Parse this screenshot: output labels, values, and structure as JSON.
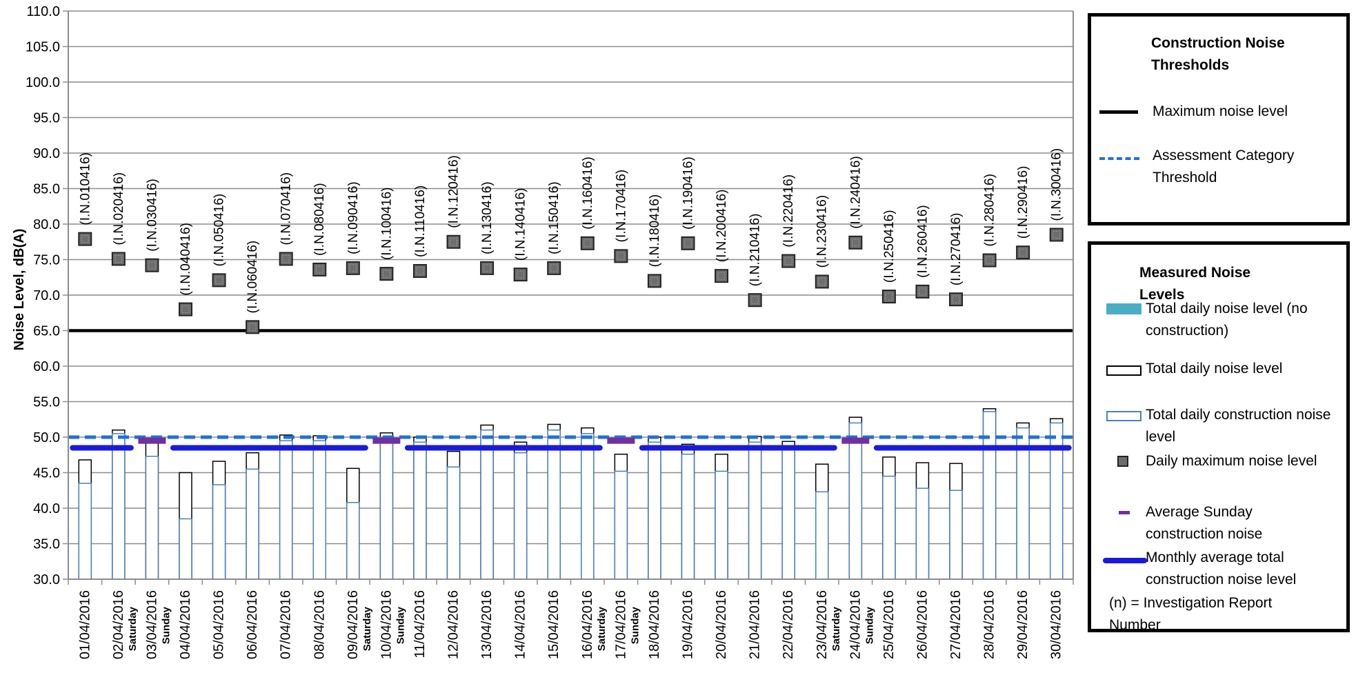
{
  "chart_data": {
    "type": "bar",
    "ylabel": "Noise Level, dB(A)",
    "ylim": [
      30.0,
      110.0
    ],
    "yticks": [
      "30.0",
      "35.0",
      "40.0",
      "45.0",
      "50.0",
      "55.0",
      "60.0",
      "65.0",
      "70.0",
      "75.0",
      "80.0",
      "85.0",
      "90.0",
      "95.0",
      "100.0",
      "105.0",
      "110.0"
    ],
    "grid": true,
    "categories": [
      "01/04/2016",
      "02/04/2016",
      "03/04/2016",
      "04/04/2016",
      "05/04/2016",
      "06/04/2016",
      "07/04/2016",
      "08/04/2016",
      "09/04/2016",
      "10/04/2016",
      "11/04/2016",
      "12/04/2016",
      "13/04/2016",
      "14/04/2016",
      "15/04/2016",
      "16/04/2016",
      "17/04/2016",
      "18/04/2016",
      "19/04/2016",
      "20/04/2016",
      "21/04/2016",
      "22/04/2016",
      "23/04/2016",
      "24/04/2016",
      "25/04/2016",
      "26/04/2016",
      "27/04/2016",
      "28/04/2016",
      "29/04/2016",
      "30/04/2016"
    ],
    "day_notes": [
      "",
      "Saturday",
      "Sunday",
      "",
      "",
      "",
      "",
      "",
      "Saturday",
      "Sunday",
      "",
      "",
      "",
      "",
      "",
      "Saturday",
      "Sunday",
      "",
      "",
      "",
      "",
      "",
      "Saturday",
      "Sunday",
      "",
      "",
      "",
      "",
      "",
      ""
    ],
    "series": [
      {
        "name": "Total daily construction noise level",
        "values": [
          43.5,
          50.5,
          47.3,
          38.5,
          43.3,
          45.5,
          49.5,
          49.5,
          40.8,
          50.0,
          49.3,
          45.8,
          51.0,
          47.8,
          51.0,
          50.5,
          45.2,
          49.3,
          47.6,
          45.2,
          49.3,
          48.2,
          42.3,
          52.0,
          44.5,
          42.8,
          42.5,
          53.6,
          51.3,
          52.0
        ]
      },
      {
        "name": "Total daily noise level",
        "values": [
          46.8,
          51.0,
          49.5,
          45.0,
          46.6,
          47.8,
          50.3,
          50.2,
          45.6,
          50.6,
          50.0,
          48.0,
          51.7,
          49.3,
          51.8,
          51.3,
          47.6,
          50.0,
          49.0,
          47.6,
          50.1,
          49.4,
          46.2,
          52.8,
          47.2,
          46.4,
          46.3,
          54.0,
          52.0,
          52.6
        ]
      },
      {
        "name": "Daily maximum noise level",
        "values": [
          77.9,
          75.1,
          74.2,
          68.0,
          72.1,
          65.5,
          75.1,
          73.6,
          73.8,
          73.0,
          73.4,
          77.5,
          73.8,
          72.9,
          73.8,
          77.3,
          75.5,
          72.0,
          77.3,
          72.7,
          69.3,
          74.8,
          71.9,
          77.4,
          69.8,
          70.5,
          69.4,
          74.9,
          76.0,
          78.5
        ]
      },
      {
        "name": "Average Sunday construction noise",
        "values": [
          null,
          null,
          49.5,
          null,
          null,
          null,
          null,
          null,
          null,
          49.5,
          null,
          null,
          null,
          null,
          null,
          null,
          49.5,
          null,
          null,
          null,
          null,
          null,
          null,
          49.5,
          null,
          null,
          null,
          null,
          null,
          null
        ]
      },
      {
        "name": "Monthly average total construction noise level",
        "values": [
          48.5,
          48.5,
          null,
          48.5,
          48.5,
          48.5,
          48.5,
          48.5,
          48.5,
          null,
          48.5,
          48.5,
          48.5,
          48.5,
          48.5,
          48.5,
          null,
          48.5,
          48.5,
          48.5,
          48.5,
          48.5,
          48.5,
          null,
          48.5,
          48.5,
          48.5,
          48.5,
          48.5,
          48.5
        ]
      }
    ],
    "investigation_reports": [
      "(I.N.010416)",
      "(I.N.020416)",
      "(I.N.030416)",
      "(I.N.040416)",
      "(I.N.050416)",
      "(I.N.060416)",
      "(I.N.070416)",
      "(I.N.080416)",
      "(I.N.090416)",
      "(I.N.100416)",
      "(I.N.110416)",
      "(I.N.120416)",
      "(I.N.130416)",
      "(I.N.140416)",
      "(I.N.150416)",
      "(I.N.160416)",
      "(I.N.170416)",
      "(I.N.180416)",
      "(I.N.190416)",
      "(I.N.200416)",
      "(I.N.210416)",
      "(I.N.220416)",
      "(I.N.230416)",
      "(I.N.240416)",
      "(I.N.250416)",
      "(I.N.260416)",
      "(I.N.270416)",
      "(I.N.280416)",
      "(I.N.290416)",
      "(I.N.300416)"
    ],
    "thresholds": [
      {
        "name": "Maximum noise level",
        "value": 65.0
      },
      {
        "name": "Assessment Category Threshold",
        "value": 50.0
      }
    ],
    "legend_placement": "right"
  },
  "legend": {
    "thresholds_title": "Construction Noise Thresholds",
    "max_label": "Maximum noise level",
    "assess_label": "Assessment Category Threshold",
    "measured_title": "Measured Noise Levels",
    "no_construction_label": "Total daily noise level (no construction)",
    "total_label": "Total daily noise level",
    "construction_label": "Total daily construction noise level",
    "daily_max_label": "Daily maximum noise level",
    "sunday_label": "Average Sunday construction noise",
    "monthly_label": "Monthly average total construction noise level",
    "note": "(n) = Investigation Report Number"
  },
  "colors": {
    "construction_outline": "#4a7ebf",
    "no_construction_fill": "#4bacc6",
    "max_line": "#000000",
    "assessment_line": "#1f6fe0",
    "sunday": "#7030a0",
    "monthly": "#1a1adb",
    "marker_fill": "#6d6d6d",
    "grid": "#8c8c8c"
  }
}
